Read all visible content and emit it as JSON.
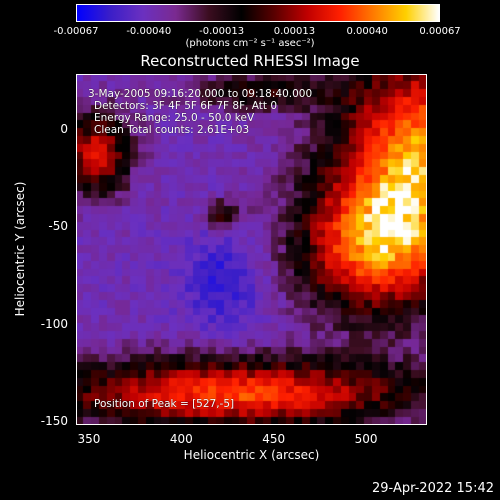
{
  "colorbar": {
    "ticks": [
      "-0.00067",
      "-0.00040",
      "-0.00013",
      "0.00013",
      "0.00040",
      "0.00067"
    ],
    "unit_label": "(photons cm⁻² s⁻¹ asec⁻²)",
    "colors": [
      "#0000ff",
      "#3a1ec8",
      "#6b30c0",
      "#7a2a90",
      "#3b0d20",
      "#000000",
      "#5a0000",
      "#c00000",
      "#ff2000",
      "#ff7a00",
      "#ffd000",
      "#ffffff"
    ]
  },
  "info": {
    "time_range": "3-May-2005 09:16:20.000 to 09:18:40.000",
    "detectors": "Detectors: 3F 4F 5F 6F 7F 8F, Att 0",
    "energy": "Energy Range: 25.0 - 50.0 keV",
    "method": "Clean     Total counts: 2.61E+03",
    "peak": "Position of Peak = [527,-5]"
  },
  "chart_data": {
    "type": "heatmap",
    "title": "Reconstructed RHESSI Image",
    "xlabel": "Heliocentric X (arcsec)",
    "ylabel": "Heliocentric Y (arcsec)",
    "xlim": [
      343,
      533
    ],
    "ylim": [
      -152,
      28
    ],
    "xticks": [
      350,
      400,
      450,
      500
    ],
    "xtick_labels": [
      "350",
      "400",
      "450",
      "500"
    ],
    "yticks": [
      0,
      -50,
      -100,
      -150
    ],
    "ytick_labels": [
      "0",
      "-50",
      "-100",
      "-150"
    ],
    "colorbar_range": [
      -0.00067,
      0.00067
    ],
    "peak_position": [
      527,
      -5
    ]
  },
  "footer": {
    "timestamp": "29-Apr-2022 15:42"
  }
}
